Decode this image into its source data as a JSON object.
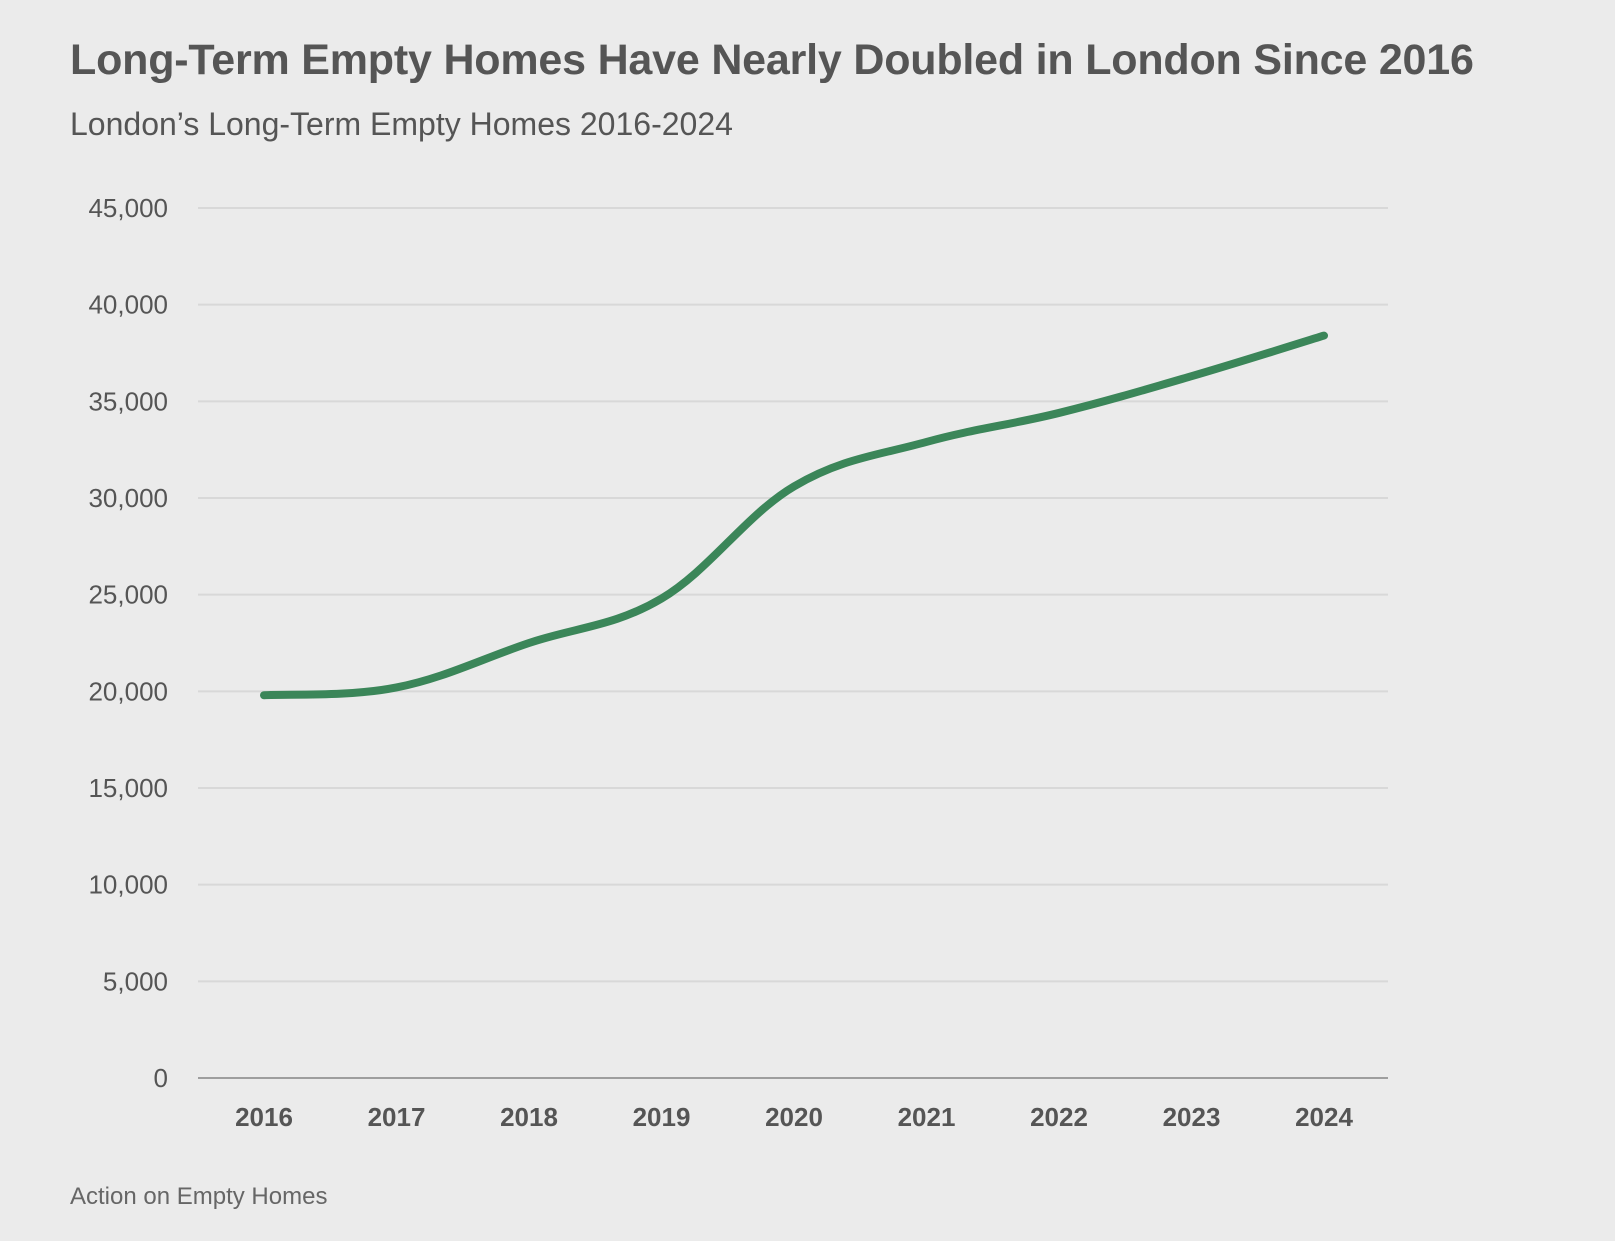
{
  "chart_data": {
    "type": "line",
    "title": "Long-Term Empty Homes Have Nearly Doubled in London Since 2016",
    "subtitle": "London’s Long-Term Empty Homes 2016-2024",
    "source": "Action on Empty Homes",
    "xlabel": "",
    "ylabel": "",
    "categories": [
      "2016",
      "2017",
      "2018",
      "2019",
      "2020",
      "2021",
      "2022",
      "2023",
      "2024"
    ],
    "series": [
      {
        "name": "Long-Term Empty Homes",
        "color": "#3b8659",
        "values": [
          19800,
          20200,
          22500,
          24800,
          30600,
          32900,
          34400,
          36300,
          38400
        ]
      }
    ],
    "ylim": [
      0,
      45000
    ],
    "yticks": [
      0,
      5000,
      10000,
      15000,
      20000,
      25000,
      30000,
      35000,
      40000,
      45000
    ],
    "ytick_labels": [
      "0",
      "5,000",
      "10,000",
      "15,000",
      "20,000",
      "25,000",
      "30,000",
      "35,000",
      "40,000",
      "45,000"
    ],
    "grid": true,
    "smooth": true,
    "colors": {
      "background": "#ebebeb",
      "gridline": "#d8d8d8",
      "axis": "#9e9e9e",
      "text": "#555555"
    }
  }
}
